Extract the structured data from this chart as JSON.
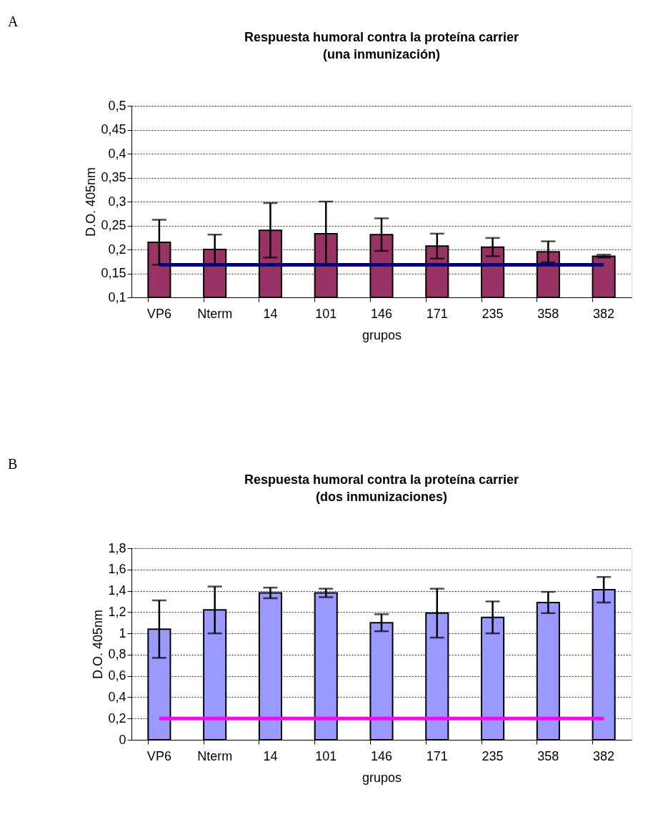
{
  "chart_data": [
    {
      "type": "bar",
      "title": "Respuesta humoral contra la proteína carrier",
      "subtitle": "(una inmunización)",
      "xlabel": "grupos",
      "ylabel": "D.O. 405nm",
      "annotations": [
        "A"
      ],
      "categories": [
        "VP6",
        "Nterm",
        "14",
        "101",
        "146",
        "171",
        "235",
        "358",
        "382"
      ],
      "series": [
        {
          "color": "#993366",
          "values": [
            0.215,
            0.2,
            0.24,
            0.233,
            0.231,
            0.207,
            0.205,
            0.195,
            0.186
          ],
          "errors": [
            0.047,
            0.031,
            0.057,
            0.067,
            0.034,
            0.026,
            0.019,
            0.022,
            0.003
          ]
        }
      ],
      "ylim": [
        0.1,
        0.5
      ],
      "yticks": [
        {
          "value": 0.1,
          "label": "0,1"
        },
        {
          "value": 0.15,
          "label": "0,15"
        },
        {
          "value": 0.2,
          "label": "0,2"
        },
        {
          "value": 0.25,
          "label": "0,25"
        },
        {
          "value": 0.3,
          "label": "0,3"
        },
        {
          "value": 0.35,
          "label": "0,35"
        },
        {
          "value": 0.4,
          "label": "0,4"
        },
        {
          "value": 0.45,
          "label": "0,45"
        },
        {
          "value": 0.5,
          "label": "0,5"
        }
      ],
      "ref_lines": [
        {
          "axis": "y",
          "value": 0.168,
          "color": "#000080"
        }
      ],
      "grid": "y"
    },
    {
      "type": "bar",
      "title": "Respuesta humoral contra la proteína carrier",
      "subtitle": "(dos inmunizaciones)",
      "xlabel": "grupos",
      "ylabel": "D.O. 405nm",
      "annotations": [
        "B"
      ],
      "categories": [
        "VP6",
        "Nterm",
        "14",
        "101",
        "146",
        "171",
        "235",
        "358",
        "382"
      ],
      "series": [
        {
          "color": "#9999ff",
          "values": [
            1.04,
            1.22,
            1.38,
            1.38,
            1.1,
            1.19,
            1.15,
            1.29,
            1.41
          ],
          "errors": [
            0.27,
            0.22,
            0.05,
            0.04,
            0.08,
            0.23,
            0.15,
            0.1,
            0.12
          ]
        }
      ],
      "ylim": [
        0,
        1.8
      ],
      "yticks": [
        0,
        {
          "value": 0.2,
          "label": "0,2"
        },
        {
          "value": 0.4,
          "label": "0,4"
        },
        {
          "value": 0.6,
          "label": "0,6"
        },
        {
          "value": 0.8,
          "label": "0,8"
        },
        1,
        {
          "value": 1.2,
          "label": "1,2"
        },
        {
          "value": 1.4,
          "label": "1,4"
        },
        {
          "value": 1.6,
          "label": "1,6"
        },
        {
          "value": 1.8,
          "label": "1,8"
        }
      ],
      "ref_lines": [
        {
          "axis": "y",
          "value": 0.2,
          "color": "#ff00ff"
        }
      ],
      "grid": "y"
    }
  ]
}
